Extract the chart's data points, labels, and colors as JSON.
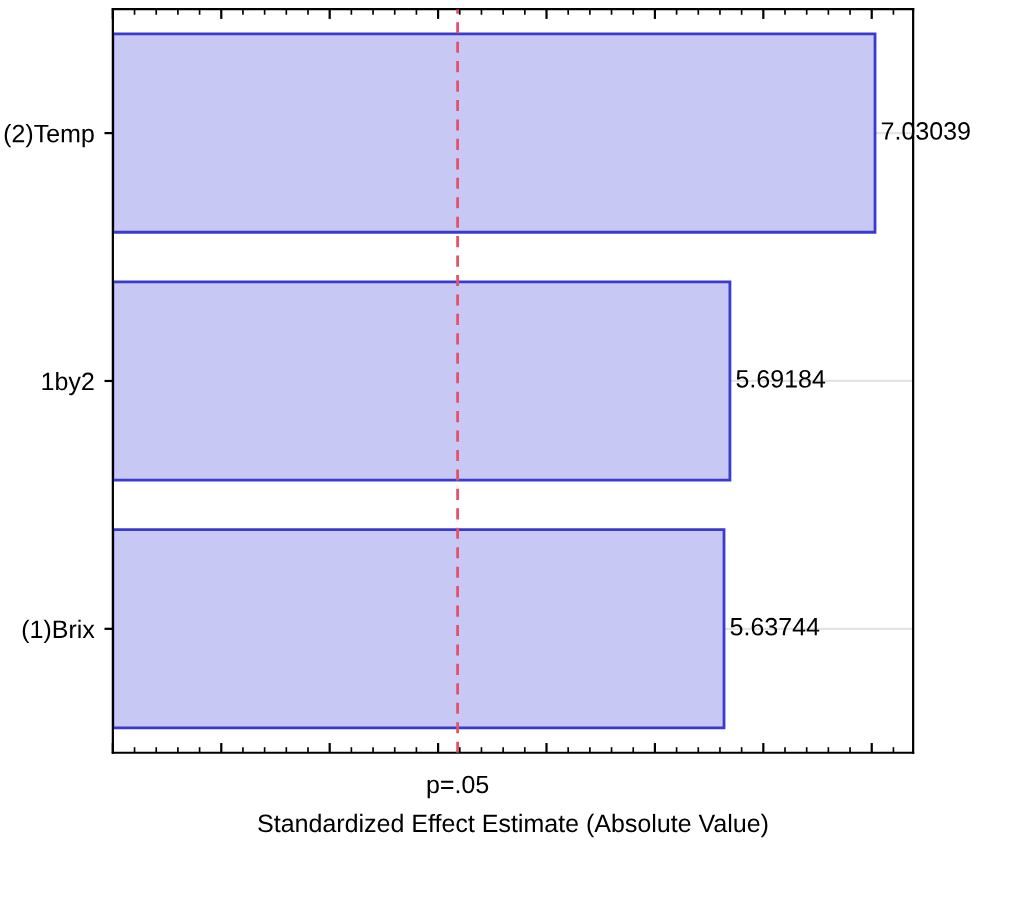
{
  "chart_data": {
    "type": "bar",
    "orientation": "horizontal",
    "categories": [
      "(2)Temp",
      "1by2",
      "(1)Brix"
    ],
    "values": [
      7.03039,
      5.69184,
      5.63744
    ],
    "color": "#c8c8f4",
    "data_labels": true,
    "xlabel": "Standardized Effect Estimate (Absolute Value)",
    "tick_labels": "y",
    "ref_lines": [
      {
        "axis": "x",
        "value": 3.18,
        "label": "p=.05",
        "color": "#e8506a",
        "line_style": "dashed"
      }
    ],
    "grid": "y"
  }
}
